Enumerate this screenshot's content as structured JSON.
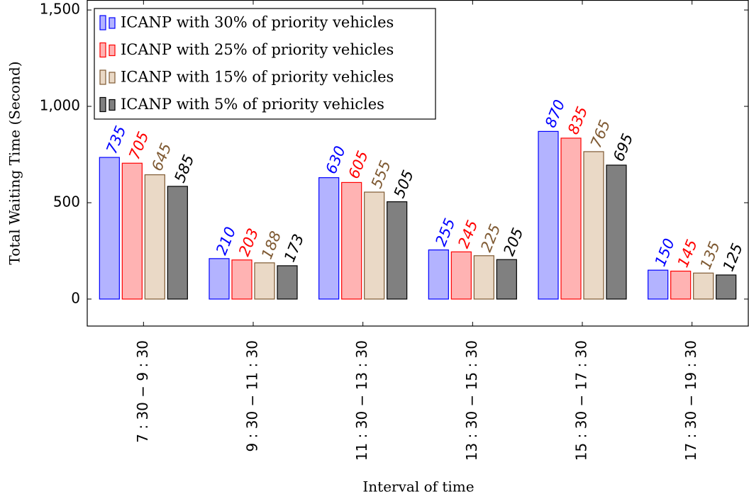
{
  "chart_data": {
    "type": "bar",
    "xlabel": "Interval of time",
    "ylabel": "Total Waiting Time (Second)",
    "categories": [
      "7 : 30 − 9 : 30",
      "9 : 30 − 11 : 30",
      "11 : 30 − 13 : 30",
      "13 : 30 − 15 : 30",
      "15 : 30 − 17 : 30",
      "17 : 30 − 19 : 30"
    ],
    "series": [
      {
        "name": "ICANP with 30% of priority vehicles",
        "color": "#b3b3ff",
        "edge": "#0000ff",
        "label_color": "#0000ff",
        "values": [
          735,
          210,
          630,
          255,
          870,
          150
        ]
      },
      {
        "name": "ICANP with 25% of priority vehicles",
        "color": "#ffb3b3",
        "edge": "#ff0000",
        "label_color": "#ff0000",
        "values": [
          705,
          203,
          605,
          245,
          835,
          145
        ]
      },
      {
        "name": "ICANP with 15% of priority vehicles",
        "color": "#ead9c6",
        "edge": "#7f5a33",
        "label_color": "#7f5a33",
        "values": [
          645,
          188,
          555,
          225,
          765,
          135
        ]
      },
      {
        "name": "ICANP with 5% of priority vehicles",
        "color": "#808080",
        "edge": "#000000",
        "label_color": "#000000",
        "values": [
          585,
          173,
          505,
          205,
          695,
          125
        ]
      }
    ],
    "ylim": [
      -140,
      1550
    ],
    "yticks": [
      0,
      500,
      {
        "value": 1000,
        "label": "1,000"
      },
      {
        "value": 1500,
        "label": "1,500"
      }
    ],
    "legend": "upper left"
  }
}
